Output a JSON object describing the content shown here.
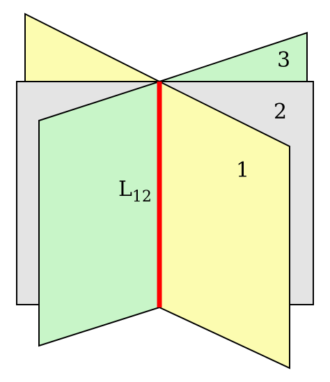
{
  "planes": [
    {
      "label": "3",
      "color": "#c8f5c8"
    },
    {
      "label": "2",
      "color": "#e4e4e4"
    },
    {
      "label": "1",
      "color": "#fcfcb0"
    }
  ],
  "back_flap_color": "#fcfcb0",
  "front_left_flap_color": "#c8f5c8",
  "intersection_line": {
    "label_main": "L",
    "label_sub": "12",
    "color": "#ff0000"
  }
}
